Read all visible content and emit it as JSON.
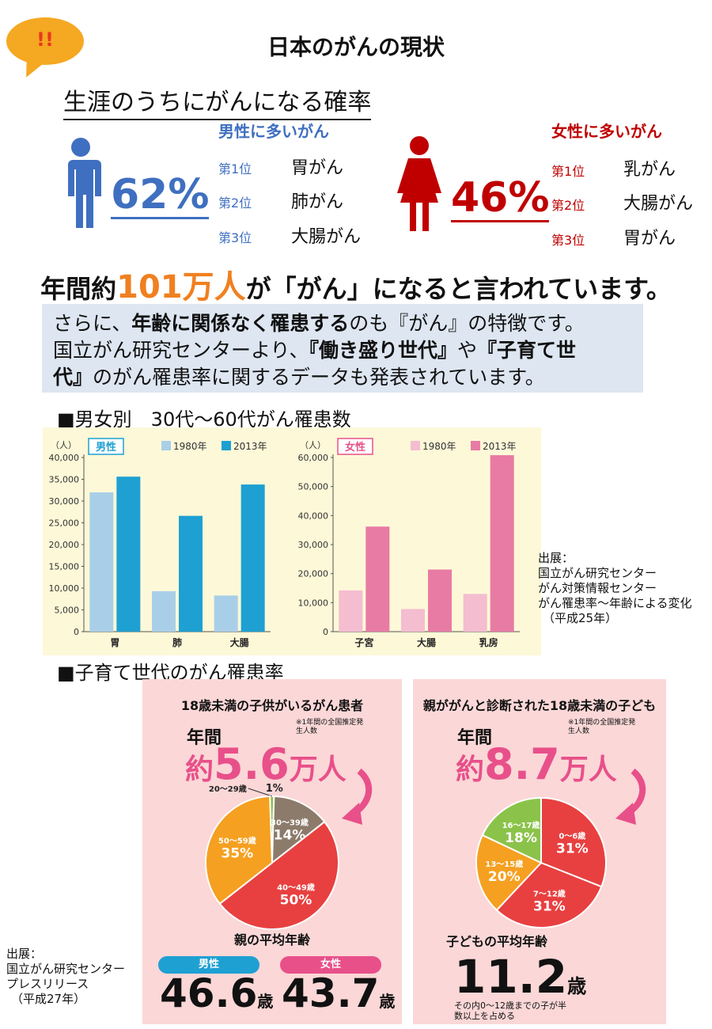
{
  "bubble": "!!",
  "title": "日本のがんの現状",
  "subtitle": "生涯のうちにがんになる確率",
  "male": {
    "header": "男性に多いがん",
    "percent": "62%",
    "ranks": [
      {
        "label": "第1位",
        "name": "胃がん"
      },
      {
        "label": "第2位",
        "name": "肺がん"
      },
      {
        "label": "第3位",
        "name": "大腸がん"
      }
    ],
    "color": "#3f6fc0"
  },
  "female": {
    "header": "女性に多いがん",
    "percent": "46%",
    "ranks": [
      {
        "label": "第1位",
        "name": "乳がん"
      },
      {
        "label": "第2位",
        "name": "大腸がん"
      },
      {
        "label": "第3位",
        "name": "胃がん"
      }
    ],
    "color": "#c00000"
  },
  "annual": {
    "pre": "年間約",
    "num": "101万人",
    "post": "が「がん」になると言われています。"
  },
  "info": {
    "line1a": "さらに、",
    "line1b": "年齢に関係なく罹患する",
    "line1c": "のも『がん』の特徴です。",
    "line2a": "国立がん研究センターより、",
    "line2b": "『働き盛り世代』",
    "line2c": "や",
    "line2d": "『子育て世",
    "line3a": "代』",
    "line3b": "のがん罹患率に関するデータも発表されています。"
  },
  "section1": "■男女別　30代〜60代がん罹患数",
  "section2": "■子育て世代のがん罹患率",
  "source1": [
    "出展：",
    "国立がん研究センター",
    "がん対策情報センター",
    "がん罹患率〜年齢による変化",
    "（平成25年）"
  ],
  "source2": [
    "出展：",
    "国立がん研究センター",
    "プレスリリース",
    "（平成27年）"
  ],
  "chart_data": [
    {
      "type": "bar",
      "badge": "男性",
      "ylabel": "（人）",
      "categories": [
        "胃",
        "肺",
        "大腸"
      ],
      "ylim": [
        0,
        40000
      ],
      "yticks": [
        "0",
        "5,000",
        "10,000",
        "15,000",
        "20,000",
        "25,000",
        "30,000",
        "35,000",
        "40,000"
      ],
      "series": [
        {
          "name": "1980年",
          "values": [
            32000,
            9300,
            8300
          ],
          "color": "#a9cfe8"
        },
        {
          "name": "2013年",
          "values": [
            35600,
            26600,
            33800
          ],
          "color": "#1ea0d2"
        }
      ]
    },
    {
      "type": "bar",
      "badge": "女性",
      "ylabel": "（人）",
      "categories": [
        "子宮",
        "大腸",
        "乳房"
      ],
      "ylim": [
        0,
        60000
      ],
      "yticks": [
        "0",
        "10,000",
        "20,000",
        "30,000",
        "40,000",
        "50,000",
        "60,000"
      ],
      "series": [
        {
          "name": "1980年",
          "values": [
            14200,
            7800,
            13000
          ],
          "color": "#f4bdd0"
        },
        {
          "name": "2013年",
          "values": [
            36200,
            21400,
            60800
          ],
          "color": "#e87ba4"
        }
      ]
    },
    {
      "type": "pie",
      "title": "18歳未満の子供がいるがん患者",
      "annual_label": "年間",
      "amount_pre": "約",
      "amount_num": "5.6",
      "amount_unit": "万人",
      "note": "※1年間の全国推定発生人数",
      "slices": [
        {
          "label": "20〜29歳",
          "value": 1,
          "text": "1%",
          "color": "#8bc34a"
        },
        {
          "label": "30〜39歳",
          "value": 14,
          "text": "14%",
          "color": "#8c7b6b"
        },
        {
          "label": "40〜49歳",
          "value": 50,
          "text": "50%",
          "color": "#e84040"
        },
        {
          "label": "50〜59歳",
          "value": 35,
          "text": "35%",
          "color": "#f5a020"
        }
      ],
      "avg_title": "親の平均年齢",
      "male_label": "男性",
      "male_age": "46.6",
      "female_label": "女性",
      "female_age": "43.7",
      "unit": "歳"
    },
    {
      "type": "pie",
      "title": "親ががんと診断された18歳未満の子ども",
      "annual_label": "年間",
      "amount_pre": "約",
      "amount_num": "8.7",
      "amount_unit": "万人",
      "note": "※1年間の全国推定発生人数",
      "slices": [
        {
          "label": "0〜6歳",
          "value": 31,
          "text": "31%",
          "color": "#e84040"
        },
        {
          "label": "7〜12歳",
          "value": 31,
          "text": "31%",
          "color": "#e84040"
        },
        {
          "label": "13〜15歳",
          "value": 20,
          "text": "20%",
          "color": "#f5a020"
        },
        {
          "label": "16〜17歳",
          "value": 18,
          "text": "18%",
          "color": "#8bc34a"
        }
      ],
      "avg_title": "子どもの平均年齢",
      "child_age": "11.2",
      "unit": "歳",
      "child_note": "その内0〜12歳までの子が半数以上を占める"
    }
  ]
}
